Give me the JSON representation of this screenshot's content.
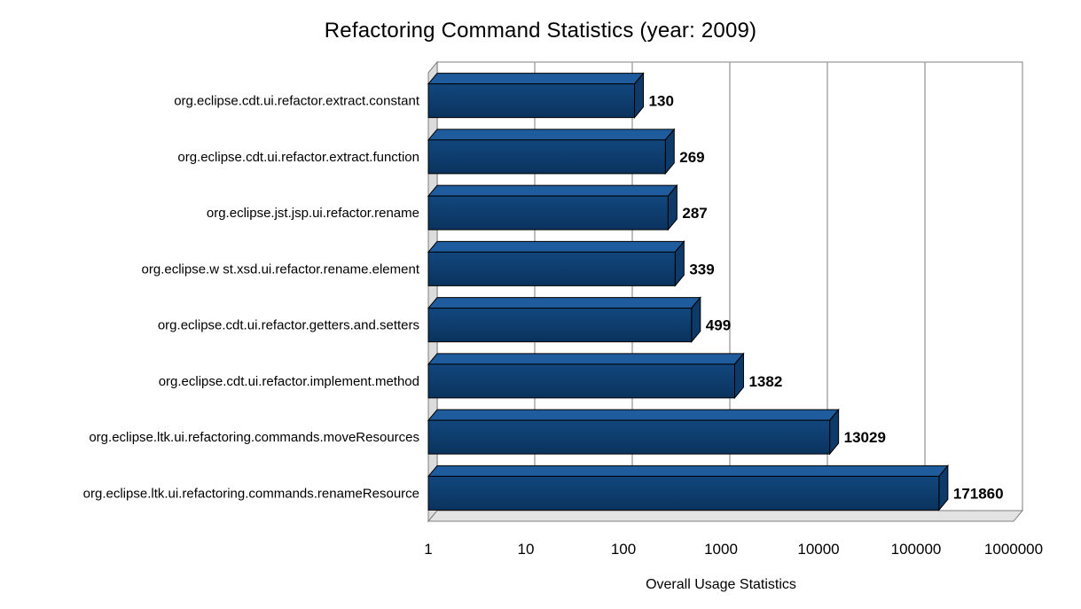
{
  "chart_data": {
    "type": "bar",
    "orientation": "horizontal",
    "style": "3d",
    "title": "Refactoring Command Statistics (year: 2009)",
    "xlabel": "Overall Usage Statistics",
    "x_scale": "log",
    "xlim": [
      1,
      1000000
    ],
    "x_ticks": [
      "1",
      "10",
      "100",
      "1000",
      "10000",
      "100000",
      "1000000"
    ],
    "grid": true,
    "legend": "none",
    "categories": [
      "org.eclipse.cdt.ui.refactor.extract.constant",
      "org.eclipse.cdt.ui.refactor.extract.function",
      "org.eclipse.jst.jsp.ui.refactor.rename",
      "org.eclipse.w st.xsd.ui.refactor.rename.element",
      "org.eclipse.cdt.ui.refactor.getters.and.setters",
      "org.eclipse.cdt.ui.refactor.implement.method",
      "org.eclipse.ltk.ui.refactoring.commands.moveResources",
      "org.eclipse.ltk.ui.refactoring.commands.renameResource"
    ],
    "values": [
      130,
      269,
      287,
      339,
      499,
      1382,
      13029,
      171860
    ],
    "colors": {
      "bar_front_top": "#12477D",
      "bar_front_bottom": "#0A335E",
      "bar_top": "#1E5C9E",
      "bar_end": "#0D3A69",
      "bar_outline": "#000000",
      "gridline": "#9A9A9A",
      "frame": "#808080",
      "wall_fill": "#DCDCDC",
      "floor_fill": "#E3E3E3",
      "background": "#FFFFFF",
      "text": "#000000"
    }
  }
}
